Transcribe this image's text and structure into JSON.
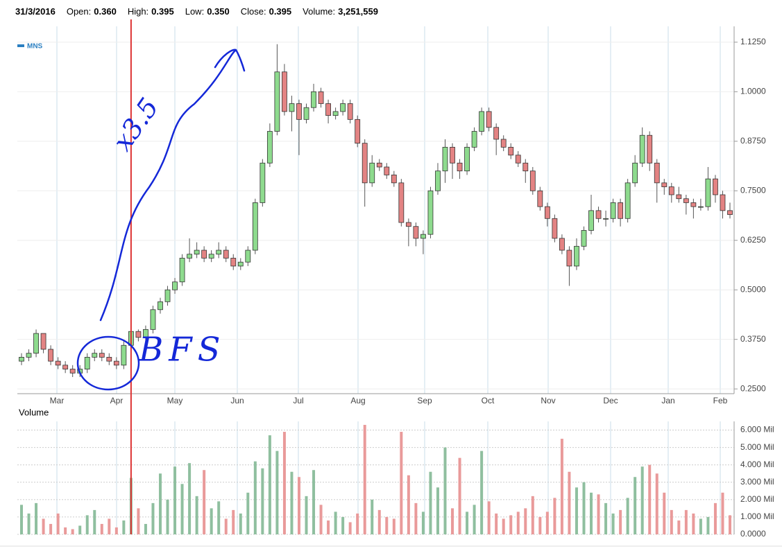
{
  "header": {
    "date": "31/3/2016",
    "fields": [
      {
        "label": "Open:",
        "value": "0.360"
      },
      {
        "label": "High:",
        "value": "0.395"
      },
      {
        "label": "Low:",
        "value": "0.350"
      },
      {
        "label": "Close:",
        "value": "0.395"
      },
      {
        "label": "Volume:",
        "value": "3,251,559"
      }
    ]
  },
  "chart_data": [
    {
      "type": "candlestick",
      "legend": "MNS",
      "legend_color": "#2a7fc1",
      "up_color": "#8edb8e",
      "down_color": "#e38383",
      "xticks": [
        "Mar",
        "Apr",
        "May",
        "Jun",
        "Jul",
        "Aug",
        "Sep",
        "Oct",
        "Nov",
        "Dec",
        "Jan",
        "Feb"
      ],
      "ylim": [
        0.238,
        1.165
      ],
      "yticks": [
        {
          "value": 0.25,
          "label": "0.2500"
        },
        {
          "value": 0.375,
          "label": "0.3750"
        },
        {
          "value": 0.5,
          "label": "0.5000"
        },
        {
          "value": 0.625,
          "label": "0.6250"
        },
        {
          "value": 0.75,
          "label": "0.7500"
        },
        {
          "value": 0.875,
          "label": "0.8750"
        },
        {
          "value": 1.0,
          "label": "1.0000"
        },
        {
          "value": 1.125,
          "label": "1.1250"
        }
      ],
      "annotations": [
        "x3.5",
        "BFS"
      ],
      "candles": [
        [
          0.32,
          0.34,
          0.31,
          0.33
        ],
        [
          0.33,
          0.35,
          0.32,
          0.34
        ],
        [
          0.34,
          0.4,
          0.33,
          0.39
        ],
        [
          0.39,
          0.39,
          0.34,
          0.35
        ],
        [
          0.35,
          0.36,
          0.31,
          0.32
        ],
        [
          0.32,
          0.33,
          0.3,
          0.31
        ],
        [
          0.31,
          0.32,
          0.29,
          0.3
        ],
        [
          0.3,
          0.31,
          0.28,
          0.29
        ],
        [
          0.29,
          0.31,
          0.28,
          0.3
        ],
        [
          0.3,
          0.34,
          0.29,
          0.33
        ],
        [
          0.33,
          0.35,
          0.32,
          0.34
        ],
        [
          0.34,
          0.35,
          0.32,
          0.33
        ],
        [
          0.33,
          0.34,
          0.31,
          0.32
        ],
        [
          0.32,
          0.33,
          0.3,
          0.31
        ],
        [
          0.31,
          0.37,
          0.3,
          0.36
        ],
        [
          0.36,
          0.395,
          0.35,
          0.395
        ],
        [
          0.395,
          0.4,
          0.37,
          0.38
        ],
        [
          0.38,
          0.41,
          0.37,
          0.4
        ],
        [
          0.4,
          0.46,
          0.39,
          0.45
        ],
        [
          0.45,
          0.48,
          0.44,
          0.47
        ],
        [
          0.47,
          0.51,
          0.46,
          0.5
        ],
        [
          0.5,
          0.53,
          0.49,
          0.52
        ],
        [
          0.52,
          0.59,
          0.51,
          0.58
        ],
        [
          0.58,
          0.63,
          0.57,
          0.59
        ],
        [
          0.59,
          0.62,
          0.58,
          0.6
        ],
        [
          0.6,
          0.61,
          0.57,
          0.58
        ],
        [
          0.58,
          0.6,
          0.57,
          0.59
        ],
        [
          0.59,
          0.62,
          0.58,
          0.6
        ],
        [
          0.6,
          0.61,
          0.57,
          0.58
        ],
        [
          0.58,
          0.59,
          0.55,
          0.56
        ],
        [
          0.56,
          0.58,
          0.55,
          0.57
        ],
        [
          0.57,
          0.61,
          0.56,
          0.6
        ],
        [
          0.6,
          0.73,
          0.59,
          0.72
        ],
        [
          0.72,
          0.83,
          0.71,
          0.82
        ],
        [
          0.82,
          0.92,
          0.81,
          0.9
        ],
        [
          0.9,
          1.12,
          0.89,
          1.05
        ],
        [
          1.05,
          1.07,
          0.94,
          0.95
        ],
        [
          0.95,
          0.99,
          0.9,
          0.97
        ],
        [
          0.97,
          0.98,
          0.84,
          0.93
        ],
        [
          0.93,
          0.97,
          0.92,
          0.96
        ],
        [
          0.96,
          1.02,
          0.95,
          1.0
        ],
        [
          1.0,
          1.01,
          0.96,
          0.97
        ],
        [
          0.97,
          0.98,
          0.92,
          0.94
        ],
        [
          0.94,
          0.96,
          0.93,
          0.95
        ],
        [
          0.95,
          0.98,
          0.94,
          0.97
        ],
        [
          0.97,
          0.98,
          0.92,
          0.93
        ],
        [
          0.93,
          0.94,
          0.86,
          0.87
        ],
        [
          0.87,
          0.88,
          0.71,
          0.77
        ],
        [
          0.77,
          0.84,
          0.76,
          0.82
        ],
        [
          0.82,
          0.83,
          0.8,
          0.81
        ],
        [
          0.81,
          0.82,
          0.78,
          0.79
        ],
        [
          0.79,
          0.8,
          0.76,
          0.77
        ],
        [
          0.77,
          0.78,
          0.66,
          0.67
        ],
        [
          0.67,
          0.68,
          0.61,
          0.66
        ],
        [
          0.66,
          0.67,
          0.61,
          0.63
        ],
        [
          0.63,
          0.65,
          0.59,
          0.64
        ],
        [
          0.64,
          0.76,
          0.63,
          0.75
        ],
        [
          0.75,
          0.82,
          0.74,
          0.8
        ],
        [
          0.8,
          0.88,
          0.77,
          0.86
        ],
        [
          0.86,
          0.87,
          0.78,
          0.82
        ],
        [
          0.82,
          0.83,
          0.78,
          0.8
        ],
        [
          0.8,
          0.87,
          0.79,
          0.86
        ],
        [
          0.86,
          0.91,
          0.85,
          0.9
        ],
        [
          0.9,
          0.96,
          0.89,
          0.95
        ],
        [
          0.95,
          0.96,
          0.9,
          0.91
        ],
        [
          0.91,
          0.92,
          0.84,
          0.88
        ],
        [
          0.88,
          0.89,
          0.85,
          0.86
        ],
        [
          0.86,
          0.87,
          0.83,
          0.84
        ],
        [
          0.84,
          0.85,
          0.81,
          0.82
        ],
        [
          0.82,
          0.83,
          0.77,
          0.8
        ],
        [
          0.8,
          0.81,
          0.74,
          0.75
        ],
        [
          0.75,
          0.76,
          0.7,
          0.71
        ],
        [
          0.71,
          0.72,
          0.66,
          0.68
        ],
        [
          0.68,
          0.69,
          0.62,
          0.63
        ],
        [
          0.63,
          0.64,
          0.59,
          0.6
        ],
        [
          0.6,
          0.61,
          0.51,
          0.56
        ],
        [
          0.56,
          0.63,
          0.55,
          0.61
        ],
        [
          0.61,
          0.66,
          0.6,
          0.65
        ],
        [
          0.65,
          0.74,
          0.64,
          0.7
        ],
        [
          0.7,
          0.71,
          0.67,
          0.68
        ],
        [
          0.68,
          0.7,
          0.66,
          0.68
        ],
        [
          0.68,
          0.73,
          0.67,
          0.72
        ],
        [
          0.72,
          0.73,
          0.66,
          0.68
        ],
        [
          0.68,
          0.78,
          0.67,
          0.77
        ],
        [
          0.77,
          0.84,
          0.76,
          0.82
        ],
        [
          0.82,
          0.91,
          0.81,
          0.89
        ],
        [
          0.89,
          0.9,
          0.8,
          0.82
        ],
        [
          0.82,
          0.83,
          0.72,
          0.77
        ],
        [
          0.77,
          0.78,
          0.74,
          0.76
        ],
        [
          0.76,
          0.77,
          0.72,
          0.74
        ],
        [
          0.74,
          0.76,
          0.72,
          0.73
        ],
        [
          0.73,
          0.74,
          0.69,
          0.72
        ],
        [
          0.72,
          0.73,
          0.68,
          0.71
        ],
        [
          0.71,
          0.73,
          0.7,
          0.71
        ],
        [
          0.71,
          0.81,
          0.7,
          0.78
        ],
        [
          0.78,
          0.79,
          0.72,
          0.74
        ],
        [
          0.74,
          0.75,
          0.68,
          0.7
        ],
        [
          0.7,
          0.72,
          0.68,
          0.69
        ]
      ]
    },
    {
      "type": "bar",
      "title": "Volume",
      "up_color": "#8fbf9f",
      "down_color": "#e99a9a",
      "ylim": [
        0,
        6.5
      ],
      "yticks": [
        {
          "value": 0,
          "label": "0.0000"
        },
        {
          "value": 1,
          "label": "1.000 Mil"
        },
        {
          "value": 2,
          "label": "2.000 Mil"
        },
        {
          "value": 3,
          "label": "3.000 Mil"
        },
        {
          "value": 4,
          "label": "4.000 Mil"
        },
        {
          "value": 5,
          "label": "5.000 Mil"
        },
        {
          "value": 6,
          "label": "6.000 Mil"
        }
      ],
      "values": [
        1.7,
        1.2,
        1.8,
        0.9,
        0.6,
        1.2,
        0.4,
        0.3,
        0.5,
        1.1,
        1.4,
        0.6,
        0.9,
        0.4,
        0.8,
        3.25,
        1.5,
        0.6,
        1.8,
        3.5,
        2.0,
        3.9,
        2.9,
        4.1,
        2.2,
        3.7,
        1.5,
        1.9,
        0.9,
        1.4,
        1.2,
        2.4,
        4.2,
        3.8,
        5.7,
        4.8,
        5.9,
        3.6,
        3.3,
        2.2,
        3.7,
        1.7,
        0.8,
        1.3,
        1.0,
        0.7,
        1.2,
        6.3,
        2.0,
        1.4,
        1.0,
        0.9,
        5.9,
        3.4,
        1.8,
        1.3,
        3.6,
        2.7,
        5.0,
        1.5,
        4.4,
        1.3,
        1.7,
        4.8,
        1.9,
        1.2,
        0.9,
        1.1,
        1.3,
        1.5,
        2.2,
        1.0,
        1.3,
        2.1,
        5.5,
        3.6,
        2.7,
        3.0,
        2.4,
        2.3,
        1.8,
        1.2,
        1.4,
        2.1,
        3.3,
        3.9,
        4.0,
        3.5,
        2.4,
        1.4,
        0.8,
        1.4,
        1.2,
        0.9,
        1.0,
        1.8,
        2.4,
        1.1
      ]
    }
  ]
}
